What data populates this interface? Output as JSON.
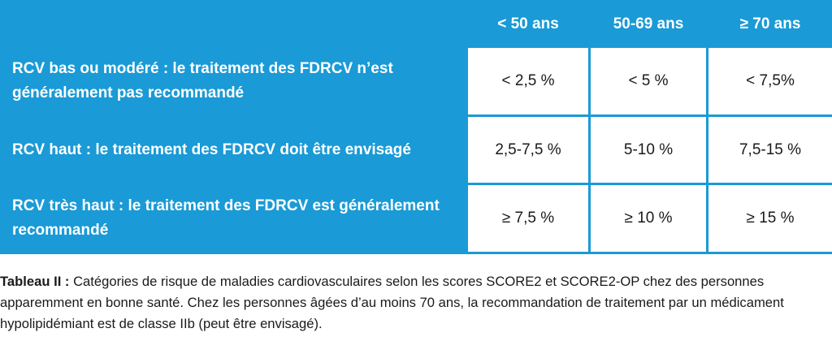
{
  "table": {
    "columns": [
      "< 50 ans",
      "50-69 ans",
      "≥ 70 ans"
    ],
    "rows": [
      {
        "label": "RCV bas ou modéré : le traitement des FDRCV n’est généralement pas recommandé",
        "values": [
          "< 2,5 %",
          "< 5 %",
          "< 7,5%"
        ]
      },
      {
        "label": "RCV haut : le traitement des FDRCV doit être envisagé",
        "values": [
          "2,5-7,5 %",
          "5-10 %",
          "7,5-15 %"
        ]
      },
      {
        "label": "RCV très haut : le traitement des FDRCV est généralement recommandé",
        "values": [
          "≥ 7,5 %",
          "≥ 10 %",
          "≥ 15 %"
        ]
      }
    ]
  },
  "caption": {
    "label": "Tableau II :",
    "text": "Catégories de risque de maladies cardiovasculaires selon les scores SCORE2 et SCORE2-OP chez des personnes apparemment en bonne santé. Chez les personnes âgées d’au moins 70 ans, la recommandation de traitement par un médicament hypolipidémiant est de classe IIb (peut être envisagé)."
  },
  "colors": {
    "header_blue": "#1a9ad6",
    "cell_bg": "#ffffff",
    "text_dark": "#1a1a1a"
  }
}
